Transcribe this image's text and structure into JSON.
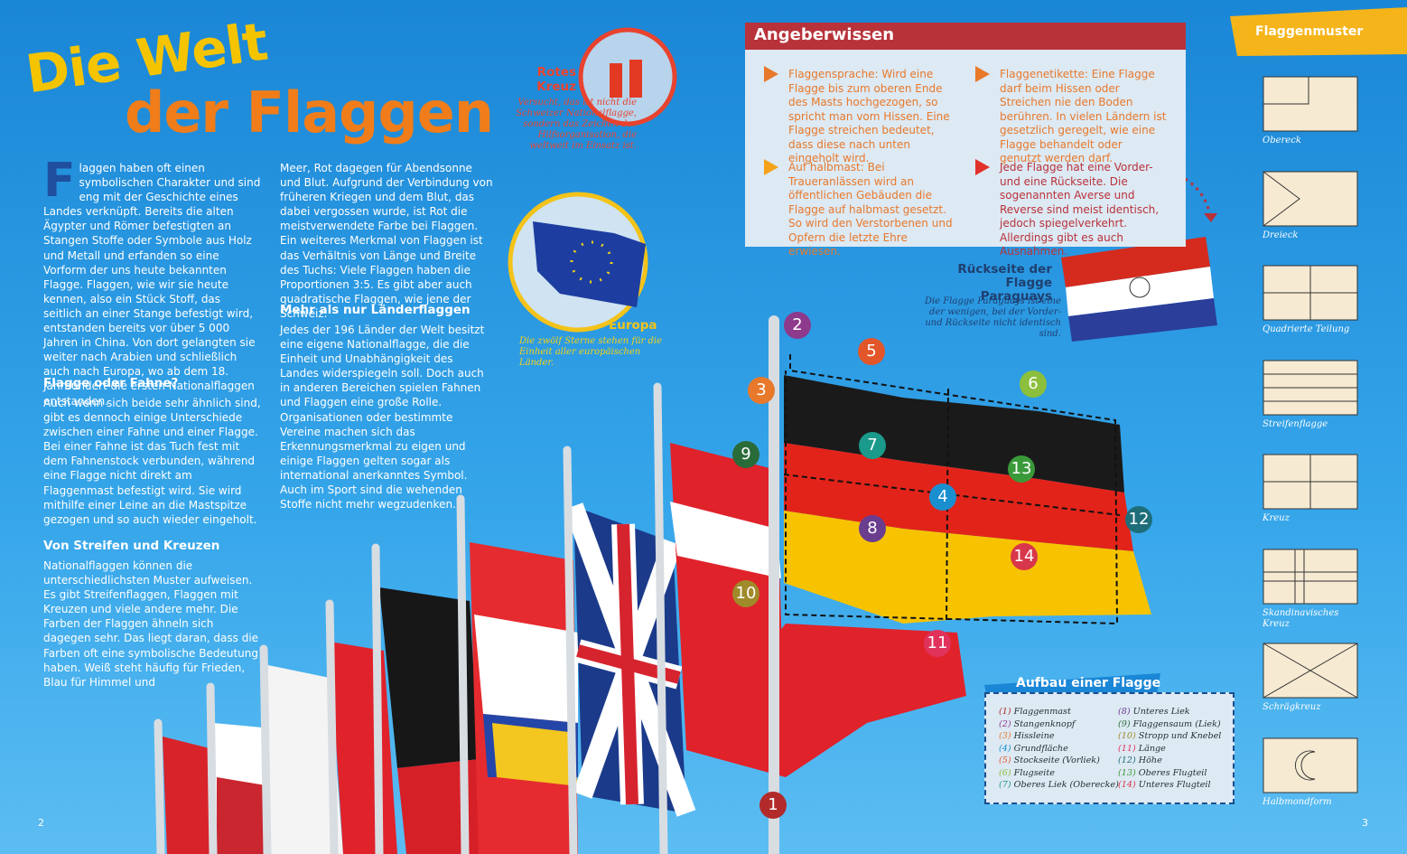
{
  "header": {
    "title_line1": "Die Welt",
    "title_line2": "der Flaggen"
  },
  "column1": {
    "intro": "Flaggen haben oft einen symbolischen Charakter und sind eng mit der Geschichte eines Landes verknüpft. Bereits die alten Ägypter und Römer befestigten an Stangen Stoffe oder Symbole aus Holz und Metall und erfanden so eine Vorform der uns heute bekannten Flagge. Flaggen, wie wir sie heute kennen, also ein Stück Stoff, das seitlich an einer Stange befestigt wird, entstanden bereits vor über 5 000 Jahren in China. Von dort gelangten sie weiter nach Arabien und schließlich auch nach Europa, wo ab dem 18. Jahrhundert die ersten Nationalflaggen entstanden.",
    "heading1": "Flagge oder Fahne?",
    "text1": "Auch wenn sich beide sehr ähnlich sind, gibt es dennoch einige Unterschiede zwischen einer Fahne und einer Flagge. Bei einer Fahne ist das Tuch fest mit dem Fahnenstock verbunden, während eine Flagge nicht direkt am Flaggenmast befestigt wird. Sie wird mithilfe einer Leine an die Mastspitze gezogen und so auch wieder eingeholt.",
    "heading2": "Von Streifen und Kreuzen",
    "text2": "Nationalflaggen können die unterschiedlichsten Muster aufweisen. Es gibt Streifenflaggen, Flaggen mit Kreuzen und viele andere mehr. Die Farben der Flaggen ähneln sich dagegen sehr. Das liegt daran, dass die Farben oft eine symbolische Bedeutung haben. Weiß steht häufig für Frieden, Blau für Himmel und"
  },
  "column2": {
    "text0": "Meer, Rot dagegen für Abendsonne und Blut. Aufgrund der Verbindung von früheren Kriegen und dem Blut, das dabei vergossen wurde, ist Rot die meistverwendete Farbe bei Flaggen. Ein weiteres Merkmal von Flaggen ist das Verhältnis von Länge und Breite des Tuchs: Viele Flaggen haben die Proportionen 3:5. Es gibt aber auch quadratische Flaggen, wie jene der Schweiz.",
    "heading": "Mehr als nur Länderflaggen",
    "text1": "Jedes der 196 Länder der Welt besitzt eine eigene Nationalflagge, die die Einheit und Unabhängigkeit des Landes widerspiegeln soll. Doch auch in anderen Bereichen spielen Fahnen und Flaggen eine große Rolle. Organisationen oder bestimmte Vereine machen sich das Erkennungsmerkmal zu eigen und einige Flaggen gelten sogar als international anerkanntes Symbol. Auch im Sport sind die wehenden Stoffe nicht mehr wegzudenken."
  },
  "red_cross": {
    "title": "Rotes Kreuz",
    "caption": "Versucht, das ist nicht die Schweizer Nationalflagge, sondern das Zeichen der Hilfsorganisation, die weltweit im Einsatz ist."
  },
  "europe": {
    "title": "Europa",
    "caption": "Die zwölf Sterne stehen für die Einheit aller europäischen Länder."
  },
  "facts": {
    "title": "Angeberwissen",
    "items": [
      "Flaggensprache: Wird eine Flagge bis zum oberen Ende des Masts hochgezogen, so spricht man vom Hissen. Eine Flagge streichen bedeutet, dass diese nach unten eingeholt wird.",
      "Auf halbmast: Bei Traueranlässen wird an öffentlichen Gebäuden die Flagge auf halbmast gesetzt. So wird den Verstorbenen und Opfern die letzte Ehre erwiesen.",
      "Flaggenetikette: Eine Flagge darf beim Hissen oder Streichen nie den Boden berühren. In vielen Ländern ist gesetzlich geregelt, wie eine Flagge behandelt oder genutzt werden darf.",
      "Jede Flagge hat eine Vorder- und eine Rückseite. Die sogenannten Averse und Reverse sind meist identisch, jedoch spiegelverkehrt. Allerdings gibt es auch Ausnahmen."
    ]
  },
  "paraguay": {
    "title": "Rückseite der Flagge Paraguays",
    "caption": "Die Flagge Paraguays ist eine der wenigen, bei der Vorder- und Rückseite nicht identisch sind."
  },
  "markers": [
    "1",
    "2",
    "3",
    "4",
    "5",
    "6",
    "7",
    "8",
    "9",
    "10",
    "11",
    "12",
    "13",
    "14"
  ],
  "legend": {
    "title": "Aufbau einer Flagge",
    "items": [
      {
        "number": "(1)",
        "label": "Flaggenmast",
        "color": "#b22a2a"
      },
      {
        "number": "(2)",
        "label": "Stangenknopf",
        "color": "#8e3a8c"
      },
      {
        "number": "(3)",
        "label": "Hissleine",
        "color": "#e8792b"
      },
      {
        "number": "(4)",
        "label": "Grundfläche",
        "color": "#1a8fd0"
      },
      {
        "number": "(5)",
        "label": "Stockseite (Vorliek)",
        "color": "#e2562a"
      },
      {
        "number": "(6)",
        "label": "Flugseite",
        "color": "#8bbf3c"
      },
      {
        "number": "(7)",
        "label": "Oberes Liek (Oberecke)",
        "color": "#1a9a8a"
      },
      {
        "number": "(8)",
        "label": "Unteres Liek",
        "color": "#6b3d8f"
      },
      {
        "number": "(9)",
        "label": "Flaggensaum (Liek)",
        "color": "#2a6b3a"
      },
      {
        "number": "(10)",
        "label": "Stropp und Knebel",
        "color": "#a08a2a"
      },
      {
        "number": "(11)",
        "label": "Länge",
        "color": "#e0325a"
      },
      {
        "number": "(12)",
        "label": "Höhe",
        "color": "#1e6e7a"
      },
      {
        "number": "(13)",
        "label": "Oberes Flugteil",
        "color": "#3a9a3a"
      },
      {
        "number": "(14)",
        "label": "Unteres Flugteil",
        "color": "#d8364a"
      }
    ]
  },
  "patterns": {
    "title": "Flaggenmuster",
    "items": [
      "Obereck",
      "Dreieck",
      "Quadrierte Teilung",
      "Streifenflagge",
      "Kreuz",
      "Skandinavisches Kreuz",
      "Schrägkreuz",
      "Halbmondform"
    ]
  },
  "page_numbers": [
    "2",
    "3"
  ]
}
